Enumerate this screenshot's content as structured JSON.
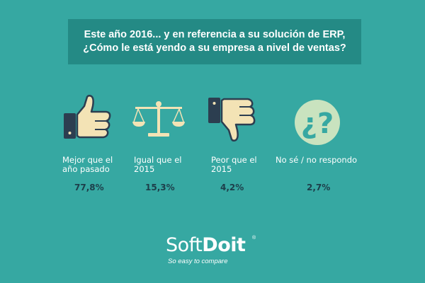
{
  "header": {
    "line1": "Este año 2016... y en referencia a su solución de ERP,",
    "line2": "¿Cómo le está yendo a su empresa a nivel de ventas?"
  },
  "chart_data": {
    "type": "bar",
    "categories": [
      {
        "line1": "Mejor que el",
        "line2": "año pasado",
        "icon": "thumbs-up-icon"
      },
      {
        "line1": "Igual que el",
        "line2": "2015",
        "icon": "balance-scale-icon"
      },
      {
        "line1": "Peor que el",
        "line2": "2015",
        "icon": "thumbs-down-icon"
      },
      {
        "line1": "No sé / no respondo",
        "line2": "",
        "icon": "question-marks-icon"
      }
    ],
    "values": [
      77.8,
      15.3,
      4.2,
      2.7
    ],
    "value_labels": [
      "77,8%",
      "15,3%",
      "4,2%",
      "2,7%"
    ]
  },
  "brand": {
    "name_part1": "Soft",
    "name_part2": "Doit",
    "reg": "®",
    "tagline": "So easy to compare"
  },
  "colors": {
    "background": "#36a8a2",
    "title_box": "#248a85",
    "icon_fill": "#f3e3b5",
    "icon_outline": "#2c3e50",
    "value_text": "#1d3e4a"
  }
}
